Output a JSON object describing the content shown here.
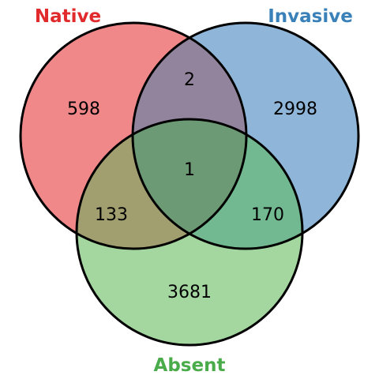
{
  "sets": {
    "native": {
      "label": "Native",
      "color": "#f0888a",
      "label_color": "#e02a2c"
    },
    "invasive": {
      "label": "Invasive",
      "color": "#8fb6d9",
      "label_color": "#3a80b9"
    },
    "absent": {
      "label": "Absent",
      "color": "#a4d7a0",
      "label_color": "#4aab4a"
    }
  },
  "regions": {
    "native_only": "598",
    "invasive_only": "2998",
    "absent_only": "3681",
    "native_invasive": "2",
    "native_absent": "133",
    "invasive_absent": "170",
    "all_three": "1"
  },
  "region_colors": {
    "native_invasive": "#93849e",
    "native_absent": "#a19f6f",
    "invasive_absent": "#72b891",
    "all_three": "#6c9a75"
  }
}
